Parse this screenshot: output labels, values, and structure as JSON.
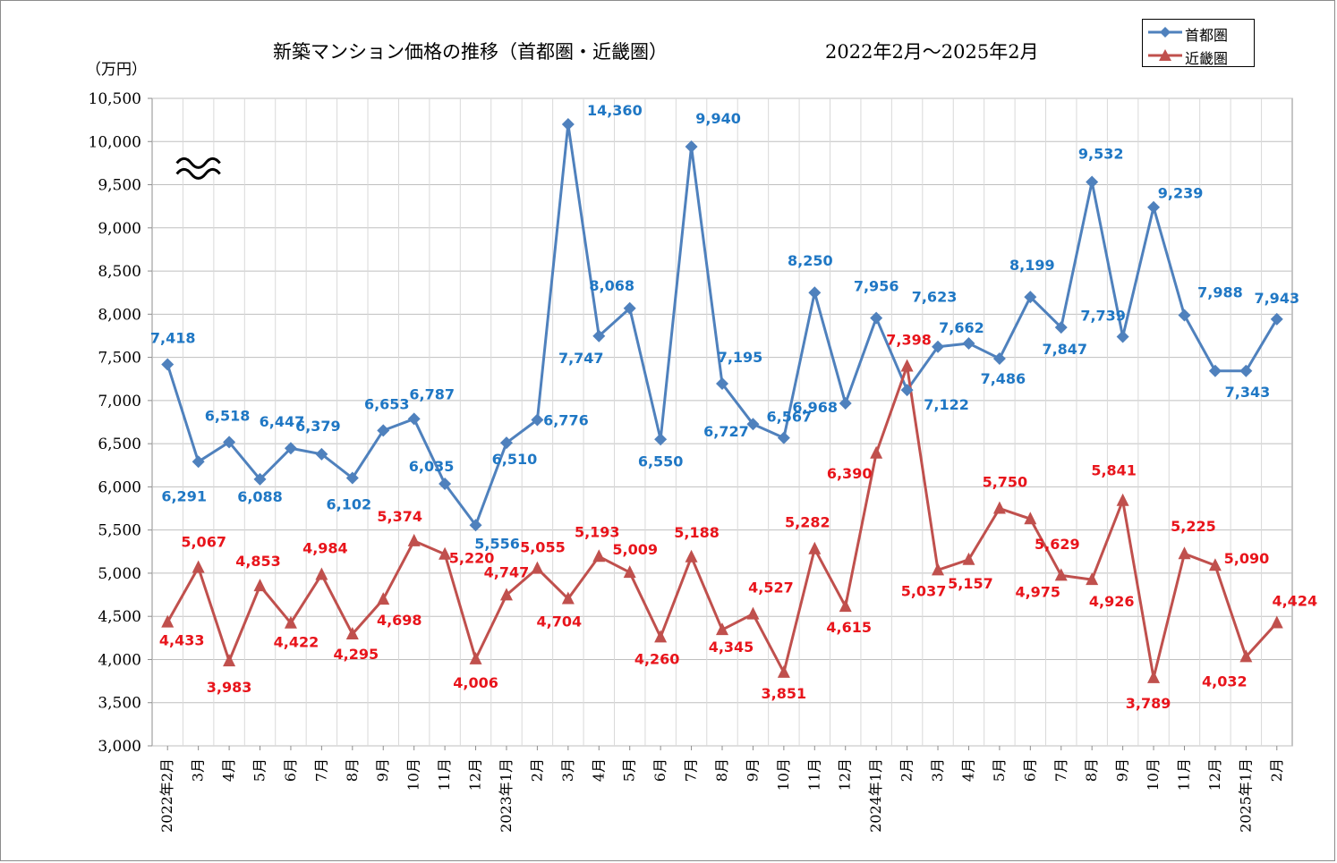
{
  "title": "新築マンション価格の推移（首都圏・近畿圏）",
  "subtitle": "2022年2月～2025年2月",
  "unit_label": "（万円）",
  "legend": [
    {
      "name": "首都圏",
      "color": "#4F81BD",
      "marker": "diamond"
    },
    {
      "name": "近畿圏",
      "color": "#C0504D",
      "marker": "triangle"
    }
  ],
  "chart_data": {
    "type": "line",
    "ylim": [
      3000,
      10500
    ],
    "y_ticks": [
      "3,000",
      "3,500",
      "4,000",
      "4,500",
      "5,000",
      "5,500",
      "6,000",
      "6,500",
      "7,000",
      "7,500",
      "8,000",
      "8,500",
      "9,000",
      "9,500",
      "10,000",
      "10,500"
    ],
    "categories": [
      "2022年2月",
      "3月",
      "4月",
      "5月",
      "6月",
      "7月",
      "8月",
      "9月",
      "10月",
      "11月",
      "12月",
      "2023年1月",
      "2月",
      "3月",
      "4月",
      "5月",
      "6月",
      "7月",
      "8月",
      "9月",
      "10月",
      "11月",
      "12月",
      "2024年1月",
      "2月",
      "3月",
      "4月",
      "5月",
      "6月",
      "7月",
      "8月",
      "9月",
      "10月",
      "11月",
      "12月",
      "2025年1月",
      "2月"
    ],
    "grid": true,
    "axis_break": {
      "series": "首都圏",
      "category": "3月"
    },
    "series": [
      {
        "name": "首都圏",
        "color": "#4F81BD",
        "label_color": "#1F77C4",
        "values": [
          7418,
          6291,
          6518,
          6088,
          6447,
          6379,
          6102,
          6653,
          6787,
          6035,
          5556,
          6510,
          6776,
          14360,
          7747,
          8068,
          6550,
          9940,
          7195,
          6727,
          6567,
          8250,
          6968,
          7956,
          7122,
          7623,
          7662,
          7486,
          8199,
          7847,
          9532,
          7739,
          9239,
          7988,
          7343,
          7343,
          7943
        ],
        "labels": [
          "7,418",
          "6,291",
          "6,518",
          "6,088",
          "6,447",
          "6,379",
          "6,102",
          "6,653",
          "6,787",
          "6,035",
          "5,556",
          "6,510",
          "6,776",
          "14,360",
          "7,747",
          "8,068",
          "6,550",
          "9,940",
          "7,195",
          "6,727",
          "6,567",
          "8,250",
          "6,968",
          "7,956",
          "7,122",
          "7,623",
          "7,662",
          "7,486",
          "8,199",
          "7,847",
          "9,532",
          "7,739",
          "9,239",
          "7,988",
          "7,343",
          "",
          ""
        ]
      },
      {
        "name": "近畿圏",
        "color": "#C0504D",
        "label_color": "#E8141B",
        "values": [
          4433,
          5067,
          3983,
          4853,
          4422,
          4984,
          4295,
          4698,
          5374,
          5220,
          4006,
          4747,
          5055,
          4704,
          5193,
          5009,
          4260,
          5188,
          4345,
          4527,
          3851,
          5282,
          4615,
          6390,
          7398,
          5037,
          5157,
          5750,
          5629,
          4975,
          4926,
          5841,
          3789,
          5225,
          5090,
          4032,
          4424
        ],
        "labels": [
          "4,433",
          "5,067",
          "3,983",
          "4,853",
          "4,422",
          "4,984",
          "4,295",
          "4,698",
          "5,374",
          "5,220",
          "4,006",
          "4,747",
          "5,055",
          "4,704",
          "5,193",
          "5,009",
          "4,260",
          "5,188",
          "4,345",
          "4,527",
          "3,851",
          "5,282",
          "4,615",
          "6,390",
          "7,398",
          "5,037",
          "5,157",
          "5,750",
          "5,629",
          "4,975",
          "4,926",
          "5,841",
          "3,789",
          "5,225",
          "5,090",
          "4,032",
          "4,424"
        ]
      }
    ],
    "extra_labels": [
      {
        "series": "首都圏",
        "text": "7,943"
      }
    ]
  }
}
